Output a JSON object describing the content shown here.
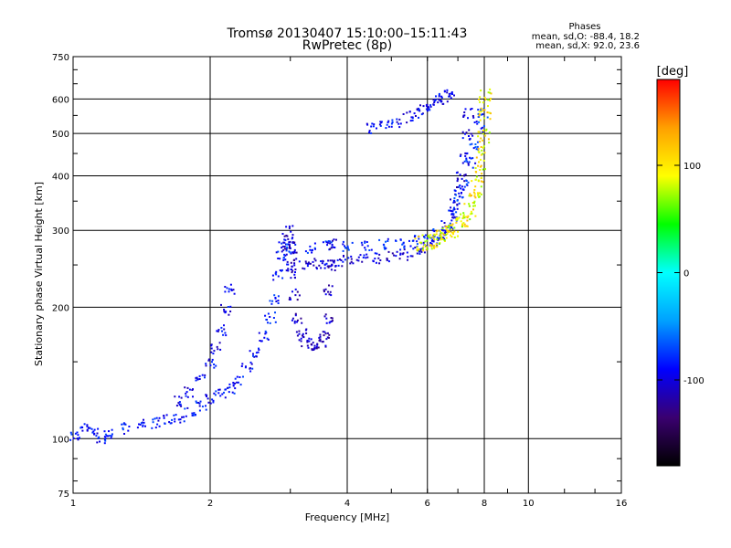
{
  "chart_data": {
    "type": "scatter",
    "title": "Tromsø 20130407 15:10:00–15:11:43",
    "subtitle": "RwPretec (8p)",
    "xlabel": "Frequency [MHz]",
    "ylabel": "Stationary phase Virtual Height [km]",
    "x_scale": "log",
    "y_scale": "log",
    "xlim": [
      1,
      16
    ],
    "ylim": [
      75,
      750
    ],
    "x_ticks": [
      1,
      2,
      4,
      6,
      8,
      10,
      16
    ],
    "y_ticks": [
      75,
      100,
      200,
      300,
      400,
      500,
      600,
      750
    ],
    "grid": true,
    "phases_box": {
      "title": "Phases",
      "line1": "mean, sd,O: -88.4, 18.2",
      "line2": "mean, sd,X:  92.0, 23.6"
    },
    "colorbar": {
      "label": "[deg]",
      "range": [
        -180,
        180
      ],
      "ticks": [
        100,
        0,
        -100
      ],
      "colors": [
        "#000000",
        "#3a0070",
        "#0000ff",
        "#00a0ff",
        "#00ffff",
        "#00ff00",
        "#ffff00",
        "#ffa000",
        "#ff0000"
      ]
    },
    "traces": [
      {
        "name": "",
        "mode": "O",
        "phase": -88,
        "points": [
          [
            1.0,
            102
          ],
          [
            1.05,
            106
          ],
          [
            1.1,
            104
          ],
          [
            1.15,
            101
          ],
          [
            1.2,
            103
          ],
          [
            1.3,
            106
          ],
          [
            1.4,
            108
          ],
          [
            1.5,
            109
          ],
          [
            1.6,
            111
          ],
          [
            1.7,
            112
          ],
          [
            1.8,
            115
          ],
          [
            1.9,
            119
          ],
          [
            2.0,
            124
          ],
          [
            2.1,
            127
          ],
          [
            2.2,
            131
          ],
          [
            2.3,
            137
          ],
          [
            2.4,
            146
          ],
          [
            2.5,
            158
          ],
          [
            2.6,
            172
          ],
          [
            2.7,
            190
          ],
          [
            2.75,
            210
          ],
          [
            2.8,
            238
          ],
          [
            2.85,
            262
          ],
          [
            2.9,
            275
          ],
          [
            2.95,
            283
          ]
        ]
      },
      {
        "name": "",
        "mode": "O",
        "phase": -95,
        "points": [
          [
            1.7,
            122
          ],
          [
            1.8,
            128
          ],
          [
            1.9,
            138
          ],
          [
            2.0,
            150
          ],
          [
            2.05,
            162
          ],
          [
            2.1,
            178
          ],
          [
            2.15,
            198
          ],
          [
            2.2,
            220
          ]
        ]
      },
      {
        "name": "",
        "mode": "O",
        "phase": -100,
        "points": [
          [
            3.0,
            250
          ],
          [
            3.2,
            252
          ],
          [
            3.4,
            253
          ],
          [
            3.6,
            255
          ],
          [
            3.8,
            256
          ],
          [
            4.0,
            257
          ],
          [
            4.3,
            258
          ],
          [
            4.6,
            260
          ],
          [
            5.0,
            262
          ],
          [
            5.3,
            265
          ],
          [
            5.6,
            270
          ],
          [
            5.9,
            276
          ],
          [
            6.2,
            284
          ],
          [
            6.4,
            293
          ],
          [
            6.6,
            305
          ],
          [
            6.8,
            325
          ],
          [
            6.9,
            345
          ],
          [
            7.0,
            370
          ],
          [
            7.1,
            400
          ],
          [
            7.2,
            440
          ],
          [
            7.3,
            500
          ],
          [
            7.35,
            560
          ]
        ]
      },
      {
        "name": "",
        "mode": "O",
        "phase": -80,
        "points": [
          [
            3.0,
            272
          ],
          [
            3.3,
            275
          ],
          [
            3.6,
            277
          ],
          [
            4.0,
            278
          ],
          [
            4.4,
            279
          ],
          [
            4.8,
            280
          ],
          [
            5.2,
            282
          ],
          [
            5.6,
            285
          ],
          [
            6.0,
            289
          ],
          [
            6.3,
            296
          ],
          [
            6.6,
            310
          ],
          [
            6.8,
            330
          ],
          [
            7.0,
            358
          ],
          [
            7.2,
            390
          ],
          [
            7.4,
            430
          ],
          [
            7.6,
            475
          ],
          [
            7.8,
            520
          ],
          [
            7.9,
            560
          ]
        ]
      },
      {
        "name": "",
        "mode": "O",
        "phase": -110,
        "points": [
          [
            2.95,
            300
          ],
          [
            2.98,
            280
          ],
          [
            3.0,
            262
          ],
          [
            3.02,
            240
          ],
          [
            3.05,
            215
          ],
          [
            3.1,
            190
          ],
          [
            3.15,
            175
          ],
          [
            3.2,
            168
          ],
          [
            3.3,
            165
          ],
          [
            3.4,
            165
          ],
          [
            3.5,
            167
          ],
          [
            3.55,
            175
          ],
          [
            3.6,
            190
          ],
          [
            3.62,
            220
          ],
          [
            3.65,
            250
          ],
          [
            3.68,
            280
          ]
        ]
      },
      {
        "name": "",
        "mode": "X",
        "phase": 95,
        "points": [
          [
            5.8,
            282
          ],
          [
            6.0,
            285
          ],
          [
            6.2,
            288
          ],
          [
            6.4,
            292
          ],
          [
            6.6,
            297
          ],
          [
            6.8,
            303
          ],
          [
            7.0,
            310
          ],
          [
            7.2,
            320
          ],
          [
            7.4,
            335
          ],
          [
            7.6,
            355
          ],
          [
            7.7,
            380
          ],
          [
            7.8,
            410
          ],
          [
            7.9,
            450
          ],
          [
            7.95,
            500
          ],
          [
            8.0,
            560
          ],
          [
            8.0,
            610
          ]
        ]
      },
      {
        "name": "",
        "mode": "O",
        "phase": -95,
        "points": [
          [
            4.5,
            515
          ],
          [
            4.8,
            525
          ],
          [
            5.1,
            535
          ],
          [
            5.4,
            548
          ],
          [
            5.7,
            562
          ],
          [
            5.9,
            572
          ],
          [
            6.1,
            585
          ],
          [
            6.3,
            598
          ],
          [
            6.5,
            612
          ],
          [
            6.7,
            620
          ]
        ]
      }
    ]
  }
}
